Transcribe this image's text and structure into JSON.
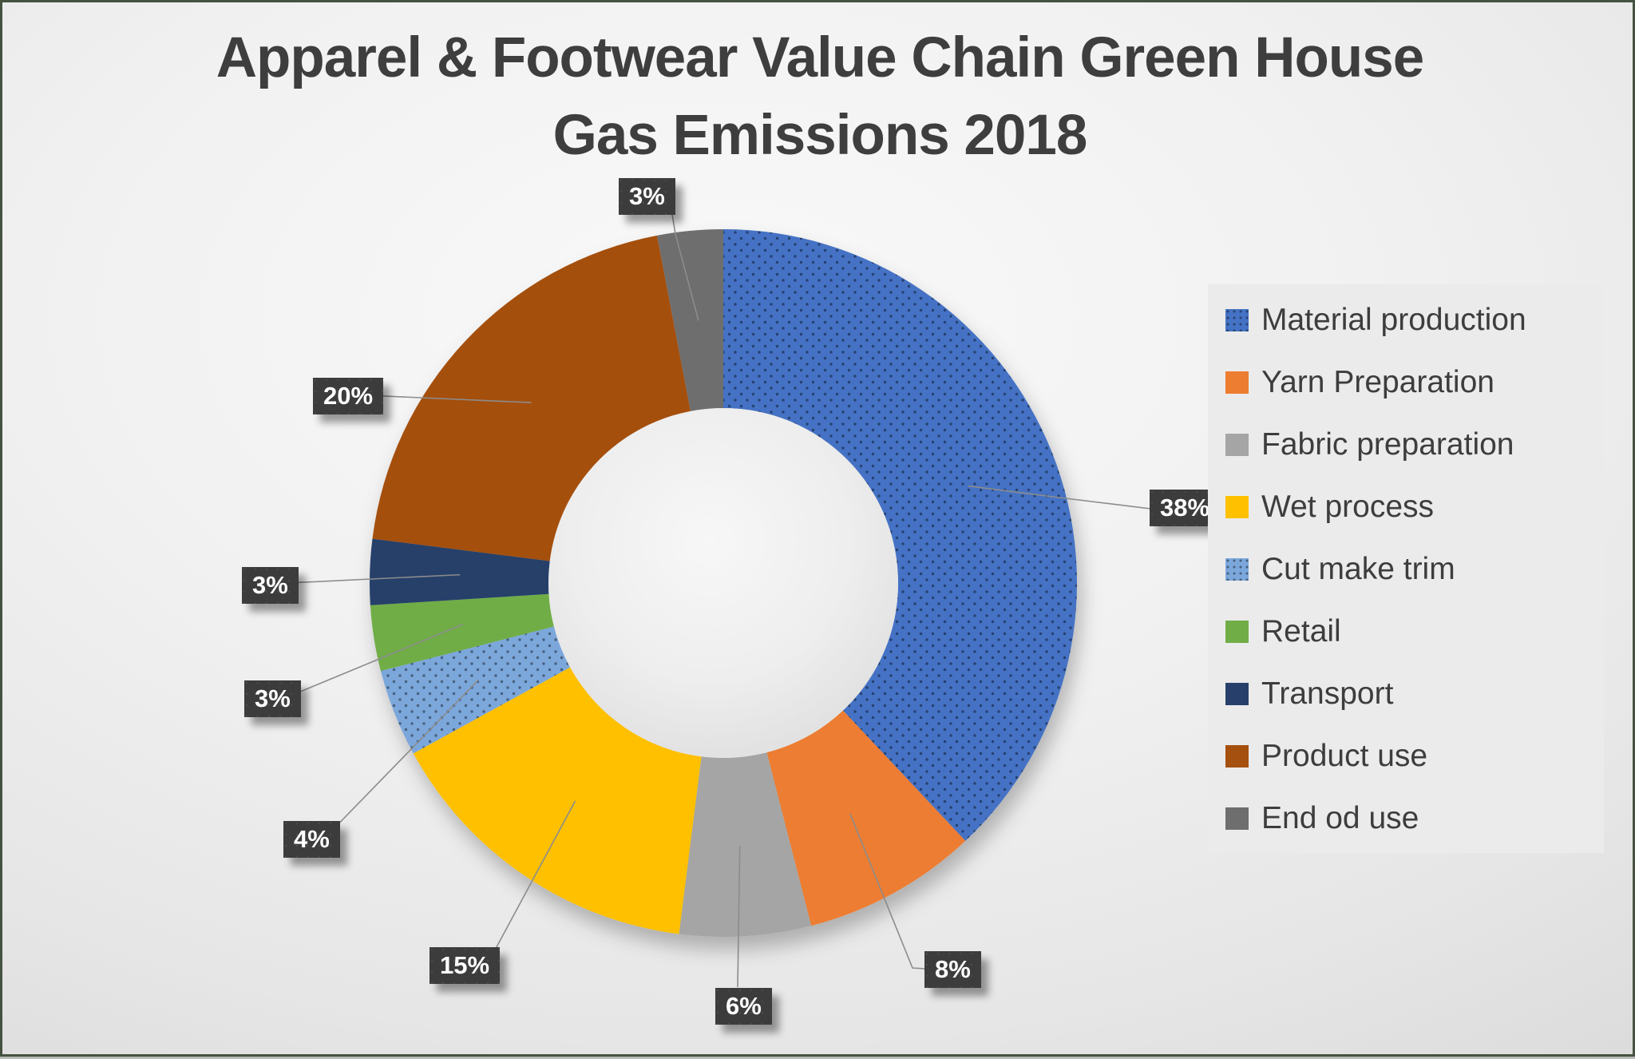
{
  "title": {
    "line1": "Apparel & Footwear Value Chain Green House",
    "line2": "Gas Emissions 2018"
  },
  "chart_data": {
    "type": "pie",
    "subtype": "donut",
    "title": "Apparel & Footwear Value Chain Green House Gas Emissions 2018",
    "unit": "percent",
    "start_angle_deg": 0,
    "direction": "clockwise",
    "legend_position": "right",
    "series": [
      {
        "label": "Material production",
        "value": 38,
        "display": "38%",
        "color": "#4472C4",
        "dotted": true
      },
      {
        "label": "Yarn Preparation",
        "value": 8,
        "display": "8%",
        "color": "#ED7D31",
        "dotted": false
      },
      {
        "label": "Fabric preparation",
        "value": 6,
        "display": "6%",
        "color": "#A5A5A5",
        "dotted": false
      },
      {
        "label": "Wet process",
        "value": 15,
        "display": "15%",
        "color": "#FFC000",
        "dotted": false
      },
      {
        "label": "Cut make trim",
        "value": 4,
        "display": "4%",
        "color": "#7BA7DB",
        "dotted": true
      },
      {
        "label": "Retail",
        "value": 3,
        "display": "3%",
        "color": "#70AD47",
        "dotted": false
      },
      {
        "label": "Transport",
        "value": 3,
        "display": "3%",
        "color": "#27406B",
        "dotted": false
      },
      {
        "label": "Product use",
        "value": 20,
        "display": "20%",
        "color": "#A5500E",
        "dotted": false
      },
      {
        "label": "End od use",
        "value": 3,
        "display": "3%",
        "color": "#6E6E6E",
        "dotted": false
      }
    ],
    "colors": {
      "label_box_bg": "#3C3C3C",
      "label_text": "#FFFFFF",
      "leader_line": "#8C8C8C",
      "title_text": "#3E3E3E",
      "legend_bg": "#EBEBEB",
      "legend_text": "#3D3D3D"
    }
  }
}
